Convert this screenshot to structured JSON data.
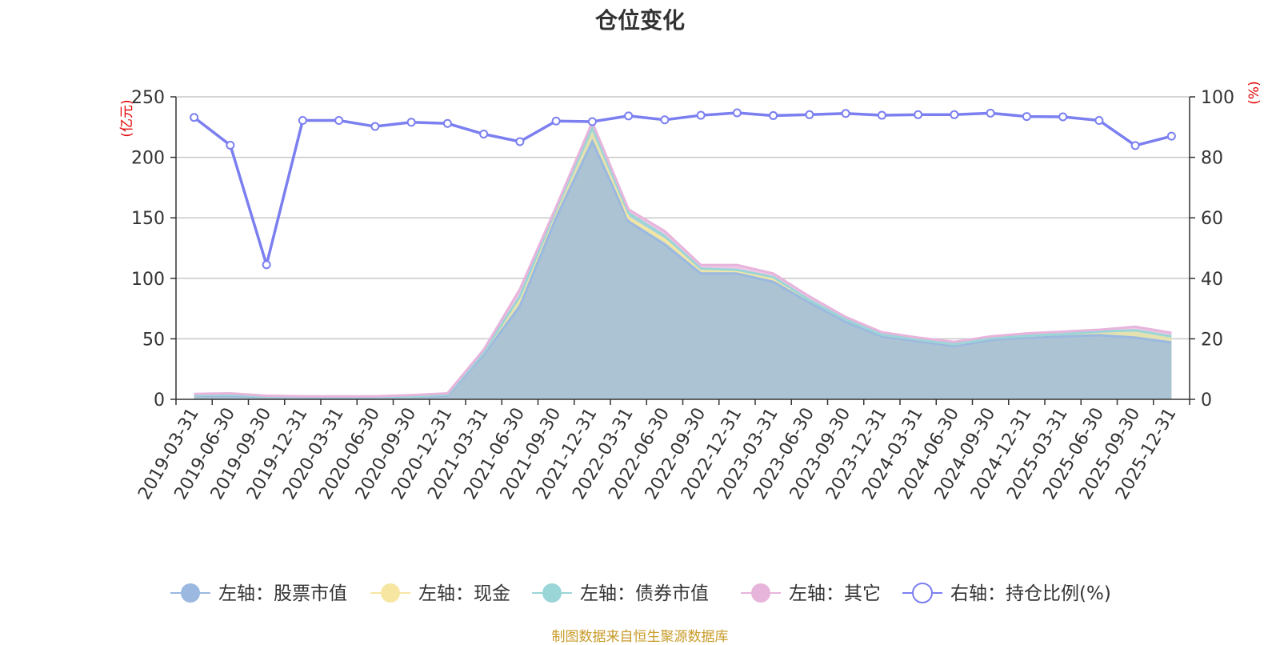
{
  "chart_data": {
    "type": "area",
    "title": "仓位变化",
    "left_axis_unit": "(亿元)",
    "right_axis_unit": "(%)",
    "ylim_left": [
      0,
      250
    ],
    "ylim_right": [
      0,
      100
    ],
    "yticks_left": [
      0,
      50,
      100,
      150,
      200,
      250
    ],
    "yticks_right": [
      0,
      20,
      40,
      60,
      80,
      100
    ],
    "grid": true,
    "legend_position": "bottom",
    "categories": [
      "2019-03-31",
      "2019-06-30",
      "2019-09-30",
      "2019-12-31",
      "2020-03-31",
      "2020-06-30",
      "2020-09-30",
      "2020-12-31",
      "2021-03-31",
      "2021-06-30",
      "2021-09-30",
      "2021-12-31",
      "2022-03-31",
      "2022-06-30",
      "2022-09-30",
      "2022-12-31",
      "2023-03-31",
      "2023-06-30",
      "2023-09-30",
      "2023-12-31",
      "2024-03-31",
      "2024-06-30",
      "2024-09-30",
      "2024-12-31",
      "2025-03-31",
      "2025-06-30",
      "2025-09-30",
      "2025-12-31"
    ],
    "series": [
      {
        "name": "左轴：股票市值",
        "axis": "left",
        "type": "stacked-area",
        "color": "#9ab8e0",
        "values": [
          3,
          3,
          2,
          1.5,
          1.5,
          1.5,
          2,
          3,
          37,
          77,
          150,
          213,
          147,
          128,
          104,
          104,
          97,
          80,
          64,
          52,
          48,
          44,
          49,
          51,
          52,
          53,
          51,
          47
        ]
      },
      {
        "name": "左轴：现金",
        "axis": "left",
        "type": "stacked-area",
        "color": "#f6e6a2",
        "values": [
          0.5,
          1,
          0.5,
          0.5,
          0.5,
          0.5,
          0.5,
          1,
          2,
          6,
          6,
          11,
          3,
          4,
          3,
          2,
          3,
          2,
          2,
          1.5,
          1.5,
          1.5,
          1.5,
          1.5,
          2,
          3,
          6,
          5
        ]
      },
      {
        "name": "左轴：债券市值",
        "axis": "left",
        "type": "stacked-area",
        "color": "#9ad5d8",
        "values": [
          0,
          0,
          0,
          0,
          0,
          0,
          0,
          0,
          0,
          2,
          1,
          0,
          4,
          3,
          1,
          1,
          1,
          0,
          0,
          0,
          0,
          0,
          0,
          0,
          0,
          0,
          0,
          0
        ]
      },
      {
        "name": "左轴：其它",
        "axis": "left",
        "type": "stacked-area",
        "color": "#e7b4dc",
        "values": [
          1,
          1,
          0.5,
          0.5,
          0.5,
          0.5,
          1,
          1,
          2,
          6,
          2,
          5,
          3,
          4,
          3,
          4,
          3,
          3,
          2,
          2,
          1.5,
          2,
          1.5,
          2,
          2,
          1.5,
          3,
          3
        ]
      },
      {
        "name": "右轴：持仓比例(%)",
        "axis": "right",
        "type": "line",
        "color": "#7b7ff0",
        "values": [
          93.2,
          84,
          44.5,
          92.2,
          92.2,
          90.2,
          91.6,
          91.2,
          87.7,
          85.2,
          92,
          91.8,
          93.7,
          92.4,
          93.9,
          94.7,
          93.8,
          94.1,
          94.5,
          93.9,
          94.1,
          94.1,
          94.6,
          93.5,
          93.4,
          92.2,
          83.9,
          87
        ]
      }
    ]
  },
  "source_note": "制图数据来自恒生聚源数据库"
}
